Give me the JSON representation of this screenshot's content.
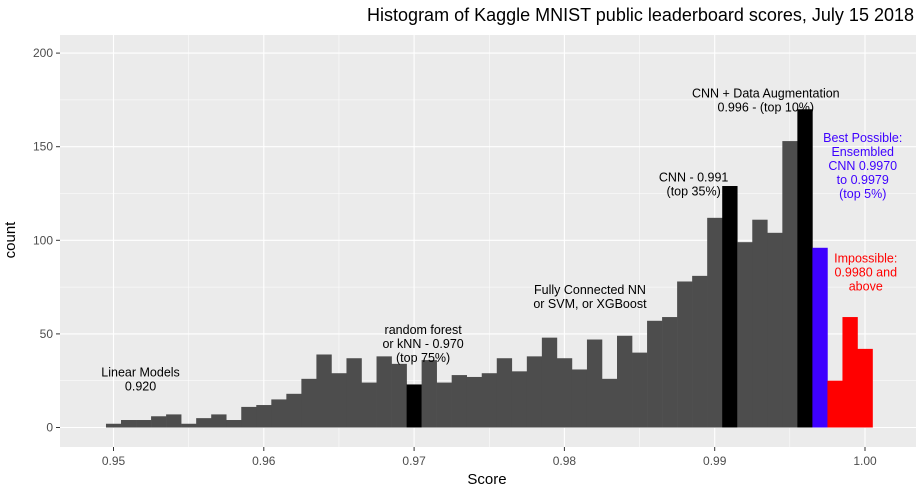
{
  "chart_data": {
    "type": "bar",
    "title": "Histogram of Kaggle MNIST public leaderboard scores, July 15 2018",
    "xlabel": "Score",
    "ylabel": "count",
    "xlim": [
      0.9455,
      1.0035
    ],
    "ylim": [
      -8,
      212
    ],
    "x_ticks": [
      "0.95",
      "0.96",
      "0.97",
      "0.98",
      "0.99",
      "1.00"
    ],
    "y_ticks": [
      "0",
      "50",
      "100",
      "150",
      "200"
    ],
    "grid": true,
    "bin_width": 0.001,
    "bin_start": 0.9495,
    "values": [
      2,
      4,
      4,
      6,
      7,
      2,
      5,
      7,
      4,
      11,
      12,
      15,
      18,
      26,
      39,
      29,
      37,
      24,
      38,
      34,
      23,
      36,
      24,
      28,
      27,
      29,
      37,
      30,
      38,
      48,
      37,
      31,
      47,
      26,
      49,
      40,
      57,
      59,
      78,
      81,
      112,
      129,
      99,
      111,
      104,
      153,
      170,
      96,
      25,
      59,
      42
    ],
    "highlights": {
      "black": [
        20,
        41,
        46
      ],
      "blue": [
        47
      ],
      "red": [
        48,
        49,
        50
      ]
    },
    "colors": {
      "default": "#4d4d4d",
      "black": "#000000",
      "blue": "#3e00ff",
      "red": "#ff0000",
      "panel": "#ebebeb",
      "grid": "#ffffff"
    },
    "annotations": [
      {
        "lines": [
          "Linear Models",
          "0.920"
        ],
        "x": 0.9518,
        "y": 26,
        "color": "#000000"
      },
      {
        "lines": [
          "random forest",
          "or kNN - 0.970",
          "(top 75%)"
        ],
        "x": 0.9706,
        "y": 45,
        "color": "#000000"
      },
      {
        "lines": [
          "Fully Connected NN",
          "or SVM, or XGBoost"
        ],
        "x": 0.9817,
        "y": 70,
        "color": "#000000"
      },
      {
        "lines": [
          "CNN - 0.991",
          "(top 35%)"
        ],
        "x": 0.9886,
        "y": 130,
        "color": "#000000"
      },
      {
        "lines": [
          "CNN + Data Augmentation",
          "0.996 - (top 10%)"
        ],
        "x": 0.9934,
        "y": 175,
        "color": "#000000"
      },
      {
        "lines": [
          "Best Possible:",
          "Ensembled",
          "CNN 0.9970",
          "to 0.9979",
          "(top 5%)"
        ],
        "x": 0.99985,
        "y": 140,
        "color": "#3e00ff"
      },
      {
        "lines": [
          "Impossible:",
          "0.9980 and",
          "above"
        ],
        "x": 1.00005,
        "y": 83,
        "color": "#ff0000"
      }
    ]
  }
}
